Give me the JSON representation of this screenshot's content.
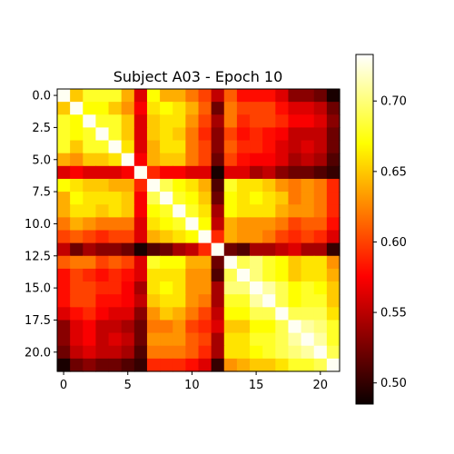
{
  "chart_data": {
    "type": "heatmap",
    "title": "Subject A03 - Epoch 10",
    "colormap": "hot",
    "xlim": [
      -0.5,
      21.5
    ],
    "ylim": [
      21.5,
      -0.5
    ],
    "x_ticks": [
      0,
      5,
      10,
      15,
      20
    ],
    "x_tick_labels": [
      "0",
      "5",
      "10",
      "15",
      "20"
    ],
    "y_ticks": [
      0,
      2.5,
      5,
      7.5,
      10,
      12.5,
      15,
      17.5,
      20
    ],
    "y_tick_labels": [
      "0.0",
      "2.5",
      "5.0",
      "7.5",
      "10.0",
      "12.5",
      "15.0",
      "17.5",
      "20.0"
    ],
    "colorbar": {
      "vmin": 0.485,
      "vmax": 0.733,
      "ticks": [
        0.5,
        0.55,
        0.6,
        0.65,
        0.7
      ],
      "tick_labels": [
        "0.50",
        "0.55",
        "0.60",
        "0.65",
        "0.70"
      ]
    },
    "matrix": [
      [
        0.73,
        0.65,
        0.68,
        0.68,
        0.68,
        0.64,
        0.56,
        0.67,
        0.64,
        0.64,
        0.62,
        0.6,
        0.55,
        0.61,
        0.58,
        0.58,
        0.58,
        0.56,
        0.53,
        0.53,
        0.52,
        0.49
      ],
      [
        0.65,
        0.73,
        0.67,
        0.67,
        0.65,
        0.63,
        0.57,
        0.66,
        0.67,
        0.66,
        0.64,
        0.61,
        0.52,
        0.62,
        0.6,
        0.6,
        0.6,
        0.58,
        0.56,
        0.56,
        0.55,
        0.52
      ],
      [
        0.68,
        0.67,
        0.73,
        0.68,
        0.68,
        0.65,
        0.56,
        0.65,
        0.66,
        0.66,
        0.63,
        0.6,
        0.54,
        0.62,
        0.59,
        0.6,
        0.6,
        0.59,
        0.57,
        0.57,
        0.56,
        0.53
      ],
      [
        0.68,
        0.67,
        0.68,
        0.73,
        0.68,
        0.65,
        0.56,
        0.65,
        0.66,
        0.65,
        0.62,
        0.59,
        0.53,
        0.6,
        0.58,
        0.59,
        0.58,
        0.57,
        0.55,
        0.55,
        0.55,
        0.52
      ],
      [
        0.68,
        0.65,
        0.68,
        0.68,
        0.73,
        0.66,
        0.56,
        0.64,
        0.66,
        0.66,
        0.62,
        0.6,
        0.53,
        0.61,
        0.59,
        0.59,
        0.58,
        0.56,
        0.55,
        0.56,
        0.55,
        0.52
      ],
      [
        0.64,
        0.63,
        0.65,
        0.65,
        0.66,
        0.73,
        0.57,
        0.64,
        0.65,
        0.65,
        0.62,
        0.6,
        0.52,
        0.6,
        0.58,
        0.57,
        0.57,
        0.56,
        0.54,
        0.55,
        0.54,
        0.51
      ],
      [
        0.56,
        0.57,
        0.56,
        0.56,
        0.56,
        0.57,
        0.73,
        0.59,
        0.57,
        0.57,
        0.56,
        0.56,
        0.49,
        0.56,
        0.56,
        0.54,
        0.55,
        0.53,
        0.52,
        0.52,
        0.51,
        0.5
      ],
      [
        0.67,
        0.66,
        0.65,
        0.65,
        0.64,
        0.64,
        0.59,
        0.73,
        0.69,
        0.67,
        0.66,
        0.64,
        0.51,
        0.68,
        0.66,
        0.66,
        0.65,
        0.63,
        0.62,
        0.63,
        0.62,
        0.59
      ],
      [
        0.64,
        0.67,
        0.66,
        0.66,
        0.66,
        0.65,
        0.57,
        0.69,
        0.73,
        0.68,
        0.67,
        0.65,
        0.52,
        0.67,
        0.66,
        0.67,
        0.66,
        0.65,
        0.62,
        0.63,
        0.62,
        0.59
      ],
      [
        0.64,
        0.66,
        0.66,
        0.65,
        0.66,
        0.65,
        0.57,
        0.67,
        0.68,
        0.73,
        0.68,
        0.66,
        0.54,
        0.67,
        0.66,
        0.66,
        0.66,
        0.64,
        0.63,
        0.63,
        0.62,
        0.59
      ],
      [
        0.62,
        0.64,
        0.63,
        0.62,
        0.62,
        0.62,
        0.56,
        0.66,
        0.67,
        0.68,
        0.73,
        0.67,
        0.55,
        0.64,
        0.63,
        0.63,
        0.63,
        0.62,
        0.6,
        0.61,
        0.61,
        0.58
      ],
      [
        0.6,
        0.61,
        0.6,
        0.59,
        0.6,
        0.6,
        0.56,
        0.64,
        0.65,
        0.66,
        0.67,
        0.73,
        0.59,
        0.64,
        0.63,
        0.63,
        0.62,
        0.6,
        0.59,
        0.6,
        0.59,
        0.56
      ],
      [
        0.55,
        0.52,
        0.54,
        0.53,
        0.53,
        0.52,
        0.49,
        0.51,
        0.52,
        0.54,
        0.55,
        0.59,
        0.73,
        0.52,
        0.51,
        0.54,
        0.54,
        0.55,
        0.56,
        0.54,
        0.54,
        0.5
      ],
      [
        0.61,
        0.62,
        0.62,
        0.6,
        0.61,
        0.6,
        0.56,
        0.68,
        0.67,
        0.67,
        0.64,
        0.64,
        0.52,
        0.73,
        0.69,
        0.7,
        0.68,
        0.67,
        0.65,
        0.66,
        0.66,
        0.63
      ],
      [
        0.58,
        0.6,
        0.59,
        0.58,
        0.59,
        0.58,
        0.56,
        0.66,
        0.66,
        0.66,
        0.63,
        0.63,
        0.51,
        0.69,
        0.73,
        0.7,
        0.68,
        0.67,
        0.65,
        0.66,
        0.66,
        0.64
      ],
      [
        0.58,
        0.6,
        0.6,
        0.59,
        0.59,
        0.57,
        0.54,
        0.66,
        0.67,
        0.66,
        0.63,
        0.63,
        0.54,
        0.7,
        0.7,
        0.73,
        0.71,
        0.69,
        0.67,
        0.68,
        0.67,
        0.65
      ],
      [
        0.58,
        0.6,
        0.6,
        0.58,
        0.58,
        0.57,
        0.55,
        0.65,
        0.66,
        0.66,
        0.63,
        0.62,
        0.54,
        0.68,
        0.68,
        0.71,
        0.73,
        0.69,
        0.67,
        0.68,
        0.68,
        0.65
      ],
      [
        0.56,
        0.58,
        0.59,
        0.57,
        0.56,
        0.56,
        0.53,
        0.63,
        0.65,
        0.64,
        0.62,
        0.6,
        0.55,
        0.67,
        0.67,
        0.69,
        0.69,
        0.73,
        0.69,
        0.69,
        0.69,
        0.66
      ],
      [
        0.53,
        0.56,
        0.57,
        0.55,
        0.55,
        0.54,
        0.52,
        0.62,
        0.62,
        0.63,
        0.6,
        0.59,
        0.56,
        0.65,
        0.65,
        0.67,
        0.67,
        0.69,
        0.73,
        0.71,
        0.7,
        0.68
      ],
      [
        0.53,
        0.56,
        0.57,
        0.55,
        0.56,
        0.55,
        0.52,
        0.63,
        0.63,
        0.63,
        0.61,
        0.6,
        0.54,
        0.66,
        0.66,
        0.68,
        0.68,
        0.69,
        0.71,
        0.73,
        0.71,
        0.68
      ],
      [
        0.52,
        0.55,
        0.56,
        0.55,
        0.55,
        0.54,
        0.51,
        0.62,
        0.62,
        0.62,
        0.61,
        0.59,
        0.54,
        0.66,
        0.66,
        0.67,
        0.68,
        0.69,
        0.7,
        0.71,
        0.73,
        0.69
      ],
      [
        0.49,
        0.52,
        0.53,
        0.52,
        0.52,
        0.51,
        0.5,
        0.59,
        0.59,
        0.59,
        0.58,
        0.56,
        0.5,
        0.63,
        0.64,
        0.65,
        0.65,
        0.66,
        0.68,
        0.68,
        0.69,
        0.73
      ]
    ]
  }
}
